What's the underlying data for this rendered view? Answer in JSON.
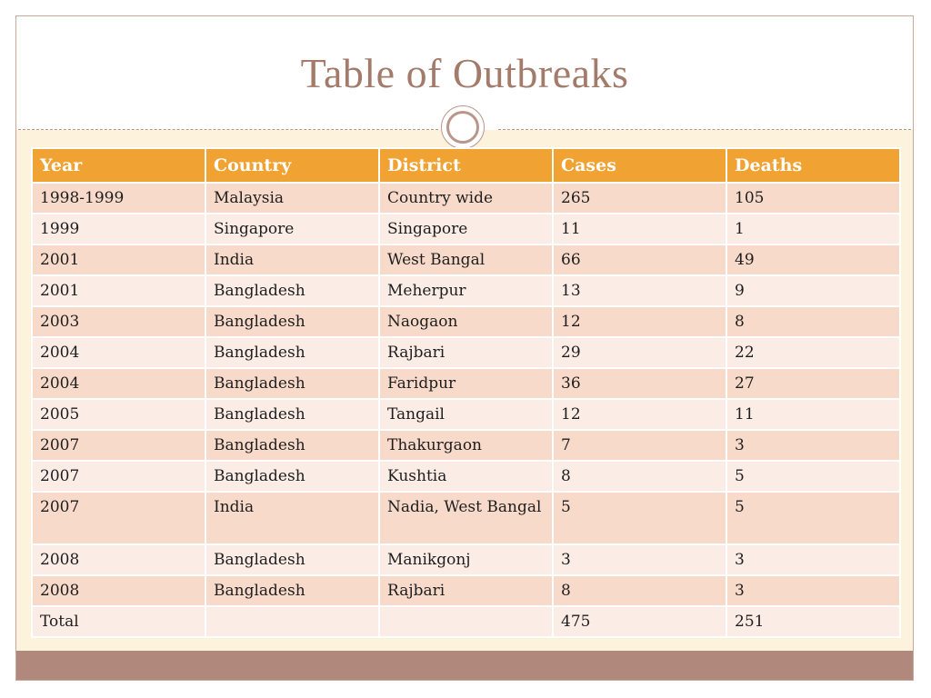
{
  "slide": {
    "title": "Table of Outbreaks"
  },
  "colors": {
    "header": "#f0a232",
    "row_odd": "#f8dacb",
    "row_even": "#fbece6",
    "title": "#a37b6a",
    "footer": "#b1887c"
  },
  "table": {
    "headers": [
      "Year",
      "Country",
      "District",
      "Cases",
      "Deaths"
    ],
    "rows": [
      [
        "1998-1999",
        "Malaysia",
        "Country wide",
        "265",
        "105"
      ],
      [
        "1999",
        "Singapore",
        "Singapore",
        "11",
        "1"
      ],
      [
        "2001",
        "India",
        "West Bangal",
        "66",
        "49"
      ],
      [
        "2001",
        "Bangladesh",
        "Meherpur",
        "13",
        "9"
      ],
      [
        "2003",
        "Bangladesh",
        "Naogaon",
        "12",
        "8"
      ],
      [
        "2004",
        "Bangladesh",
        "Rajbari",
        "29",
        "22"
      ],
      [
        "2004",
        "Bangladesh",
        "Faridpur",
        "36",
        "27"
      ],
      [
        "2005",
        "Bangladesh",
        "Tangail",
        "12",
        "11"
      ],
      [
        "2007",
        "Bangladesh",
        "Thakurgaon",
        "7",
        "3"
      ],
      [
        "2007",
        "Bangladesh",
        "Kushtia",
        "8",
        "5"
      ],
      [
        "2007",
        "India",
        "Nadia, West Bangal",
        "5",
        "5"
      ],
      [
        "2008",
        "Bangladesh",
        "Manikgonj",
        "3",
        "3"
      ],
      [
        "2008",
        "Bangladesh",
        "Rajbari",
        "8",
        "3"
      ],
      [
        "Total",
        "",
        "",
        "475",
        "251"
      ]
    ]
  }
}
